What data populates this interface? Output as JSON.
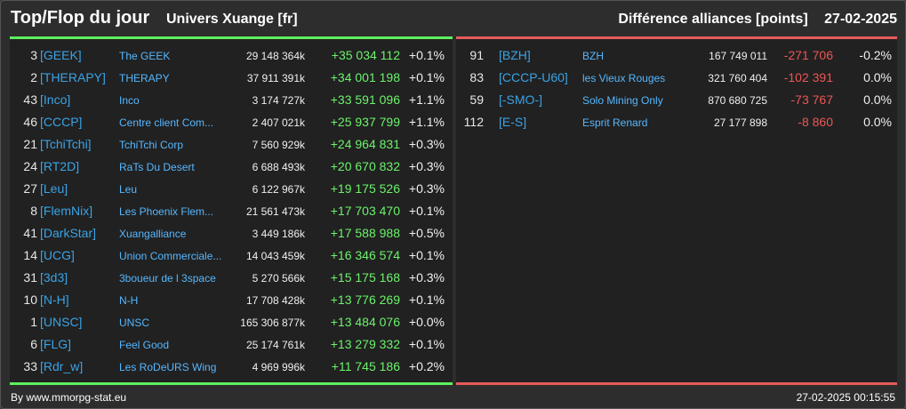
{
  "header": {
    "title": "Top/Flop du jour",
    "universe": "Univers Xuange [fr]",
    "metric": "Différence alliances [points]",
    "date": "27-02-2025"
  },
  "colors": {
    "top_accent": "#5df25d",
    "flop_accent": "#e85a5a",
    "tag": "#3aa3e6",
    "name": "#56b7ff",
    "positive": "#6cf26c",
    "negative": "#ee5555"
  },
  "top": [
    {
      "rank": "3",
      "tag": "[GEEK]",
      "name": "The GEEK",
      "points": "29 148 364k",
      "diff": "+35 034 112",
      "pct": "+0.1%"
    },
    {
      "rank": "2",
      "tag": "[THERAPY]",
      "name": "THERAPY",
      "points": "37 911 391k",
      "diff": "+34 001 198",
      "pct": "+0.1%"
    },
    {
      "rank": "43",
      "tag": "[Inco]",
      "name": "Inco",
      "points": "3 174 727k",
      "diff": "+33 591 096",
      "pct": "+1.1%"
    },
    {
      "rank": "46",
      "tag": "[CCCP]",
      "name": "Centre client Com...",
      "points": "2 407 021k",
      "diff": "+25 937 799",
      "pct": "+1.1%"
    },
    {
      "rank": "21",
      "tag": "[TchiTchi]",
      "name": "TchiTchi Corp",
      "points": "7 560 929k",
      "diff": "+24 964 831",
      "pct": "+0.3%"
    },
    {
      "rank": "24",
      "tag": "[RT2D]",
      "name": "RaTs Du Desert",
      "points": "6 688 493k",
      "diff": "+20 670 832",
      "pct": "+0.3%"
    },
    {
      "rank": "27",
      "tag": "[Leu]",
      "name": "Leu",
      "points": "6 122 967k",
      "diff": "+19 175 526",
      "pct": "+0.3%"
    },
    {
      "rank": "8",
      "tag": "[FlemNix]",
      "name": "Les Phoenix Flem...",
      "points": "21 561 473k",
      "diff": "+17 703 470",
      "pct": "+0.1%"
    },
    {
      "rank": "41",
      "tag": "[DarkStar]",
      "name": "Xuangalliance",
      "points": "3 449 186k",
      "diff": "+17 588 988",
      "pct": "+0.5%"
    },
    {
      "rank": "14",
      "tag": "[UCG]",
      "name": "Union Commerciale...",
      "points": "14 043 459k",
      "diff": "+16 346 574",
      "pct": "+0.1%"
    },
    {
      "rank": "31",
      "tag": "[3d3]",
      "name": "3boueur de l 3space",
      "points": "5 270 566k",
      "diff": "+15 175 168",
      "pct": "+0.3%"
    },
    {
      "rank": "10",
      "tag": "[N-H]",
      "name": "N-H",
      "points": "17 708 428k",
      "diff": "+13 776 269",
      "pct": "+0.1%"
    },
    {
      "rank": "1",
      "tag": "[UNSC]",
      "name": "UNSC",
      "points": "165 306 877k",
      "diff": "+13 484 076",
      "pct": "+0.0%"
    },
    {
      "rank": "6",
      "tag": "[FLG]",
      "name": "Feel Good",
      "points": "25 174 761k",
      "diff": "+13 279 332",
      "pct": "+0.1%"
    },
    {
      "rank": "33",
      "tag": "[Rdr_w]",
      "name": "Les RoDeURS Wing",
      "points": "4 969 996k",
      "diff": "+11 745 186",
      "pct": "+0.2%"
    }
  ],
  "flop": [
    {
      "rank": "91",
      "tag": "[BZH]",
      "name": "BZH",
      "points": "167 749 011",
      "diff": "-271 706",
      "pct": "-0.2%"
    },
    {
      "rank": "83",
      "tag": "[CCCP-U60]",
      "name": "les Vieux Rouges",
      "points": "321 760 404",
      "diff": "-102 391",
      "pct": "0.0%"
    },
    {
      "rank": "59",
      "tag": "[-SMO-]",
      "name": "Solo Mining Only",
      "points": "870 680 725",
      "diff": "-73 767",
      "pct": "0.0%"
    },
    {
      "rank": "112",
      "tag": "[E-S]",
      "name": "Esprit Renard",
      "points": "27 177 898",
      "diff": "-8 860",
      "pct": "0.0%"
    }
  ],
  "footer": {
    "source": "By www.mmorpg-stat.eu",
    "timestamp": "27-02-2025 00:15:55"
  }
}
